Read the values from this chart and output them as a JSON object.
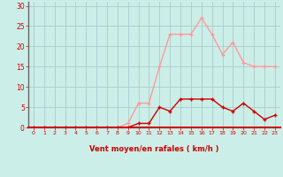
{
  "x": [
    0,
    1,
    2,
    3,
    4,
    5,
    6,
    7,
    8,
    9,
    10,
    11,
    12,
    13,
    14,
    15,
    16,
    17,
    18,
    19,
    20,
    21,
    22,
    23
  ],
  "y_mean": [
    0,
    0,
    0,
    0,
    0,
    0,
    0,
    0,
    0,
    0,
    1,
    1,
    5,
    4,
    7,
    7,
    7,
    7,
    5,
    4,
    6,
    4,
    2,
    3
  ],
  "y_gust": [
    0,
    0,
    0,
    0,
    0,
    0,
    0,
    0,
    0,
    1,
    6,
    6,
    15,
    23,
    23,
    23,
    27,
    23,
    18,
    21,
    16,
    15,
    15,
    15
  ],
  "line_color_mean": "#cc0000",
  "line_color_gust": "#ff9999",
  "bg_color": "#cceee8",
  "grid_color": "#aacccc",
  "axis_color": "#cc0000",
  "tick_color": "#cc0000",
  "xlabel": "Vent moyen/en rafales ( km/h )",
  "xlim": [
    -0.5,
    23.5
  ],
  "ylim": [
    0,
    31
  ],
  "yticks": [
    0,
    5,
    10,
    15,
    20,
    25,
    30
  ],
  "xticks": [
    0,
    1,
    2,
    3,
    4,
    5,
    6,
    7,
    8,
    9,
    10,
    11,
    12,
    13,
    14,
    15,
    16,
    17,
    18,
    19,
    20,
    21,
    22,
    23
  ],
  "left_spine_color": "#666666",
  "bottom_spine_color": "#cc0000"
}
